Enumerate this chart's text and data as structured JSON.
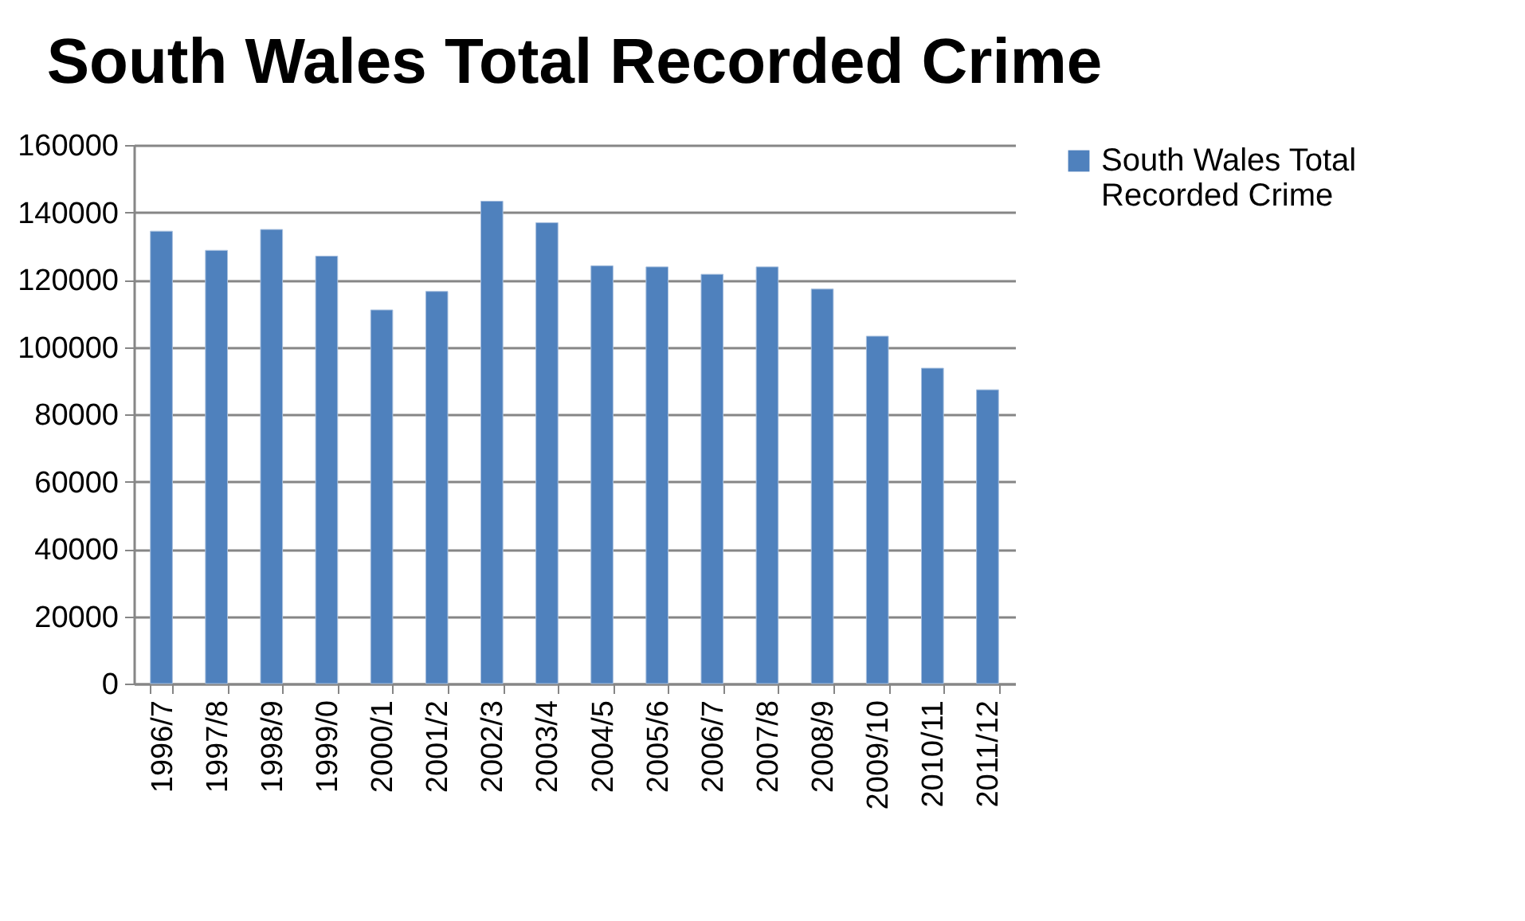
{
  "chart_data": {
    "type": "bar",
    "title": "South Wales Total Recorded Crime",
    "categories": [
      "1996/7",
      "1997/8",
      "1998/9",
      "1999/0",
      "2000/1",
      "2001/2",
      "2002/3",
      "2003/4",
      "2004/5",
      "2005/6",
      "2006/7",
      "2007/8",
      "2008/9",
      "2009/10",
      "2010/11",
      "2011/12"
    ],
    "series": [
      {
        "name": "South Wales Total Recorded Crime",
        "color": "#4f81bd",
        "values": [
          134400,
          128700,
          134900,
          127000,
          111000,
          116500,
          143300,
          136900,
          124100,
          123800,
          121600,
          123800,
          117200,
          103200,
          93700,
          87300
        ]
      }
    ],
    "ylim": [
      0,
      160000
    ],
    "yticks": [
      0,
      20000,
      40000,
      60000,
      80000,
      100000,
      120000,
      140000,
      160000
    ],
    "grid": "y",
    "legend": "right"
  }
}
